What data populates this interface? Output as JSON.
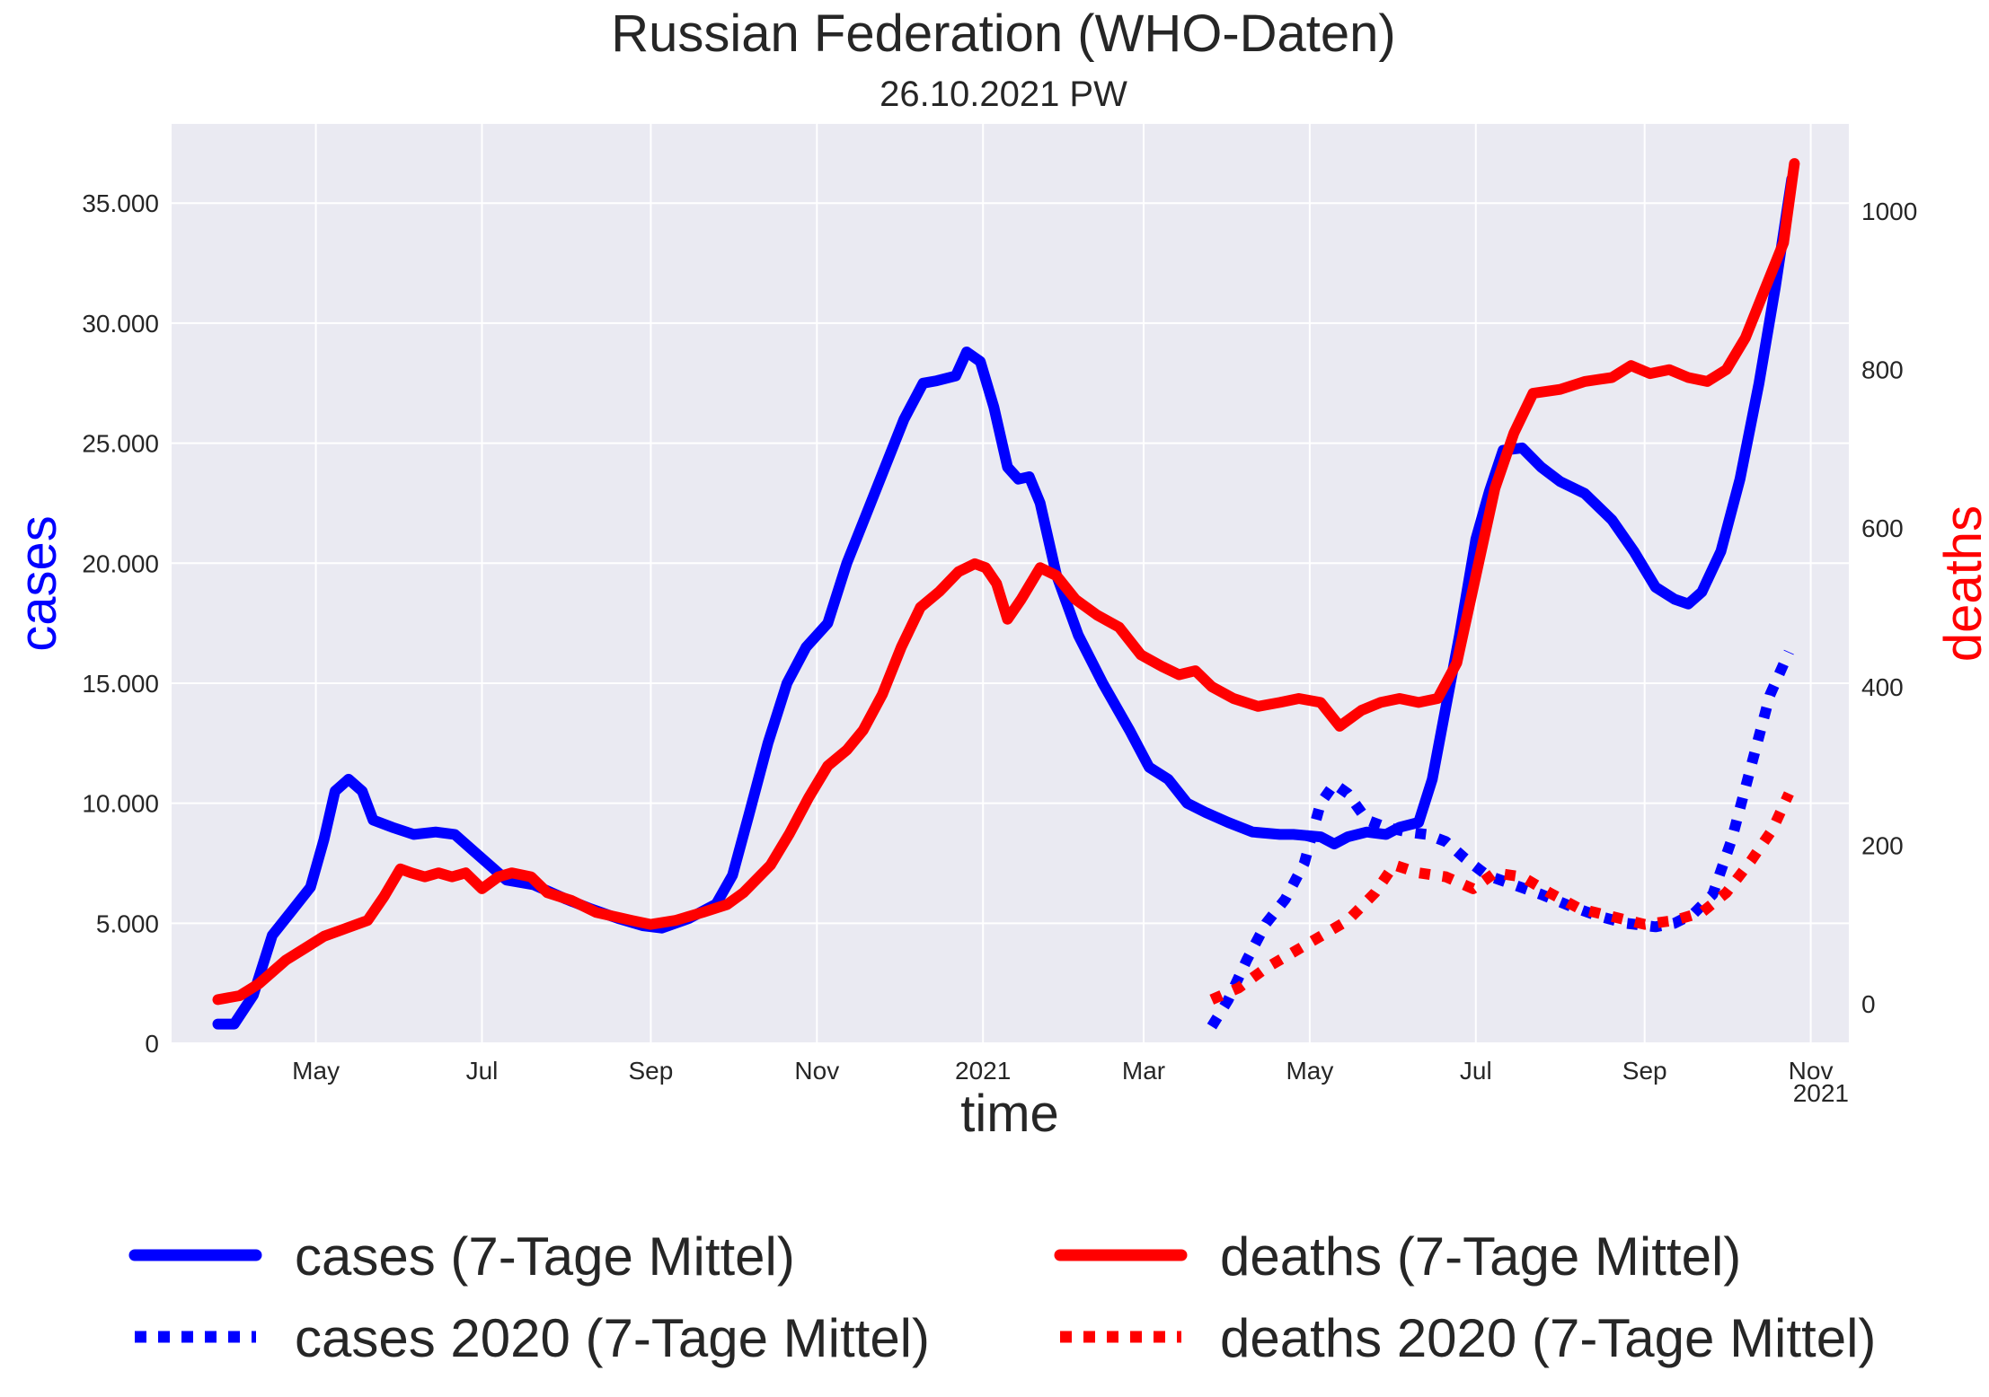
{
  "title": "Russian Federation  (WHO-Daten)",
  "subtitle": "26.10.2021 PW",
  "colors": {
    "cases": "#0000ff",
    "deaths": "#ff0000",
    "plot_background": "#eaeaf2",
    "grid": "#ffffff",
    "text": "#262626"
  },
  "chart_data": {
    "type": "line",
    "title": "Russian Federation  (WHO-Daten)",
    "subtitle": "26.10.2021 PW",
    "xlabel": "time",
    "ylabel_left": "cases",
    "ylabel_right": "deaths",
    "x_axis": {
      "type": "date",
      "range": [
        "2020-03-09",
        "2021-11-15"
      ],
      "offset_label": "2021",
      "ticks": [
        {
          "date": "2020-05-01",
          "label": "May"
        },
        {
          "date": "2020-07-01",
          "label": "Jul"
        },
        {
          "date": "2020-09-01",
          "label": "Sep"
        },
        {
          "date": "2020-11-01",
          "label": "Nov"
        },
        {
          "date": "2021-01-01",
          "label": "2021"
        },
        {
          "date": "2021-03-01",
          "label": "Mar"
        },
        {
          "date": "2021-05-01",
          "label": "May"
        },
        {
          "date": "2021-07-01",
          "label": "Jul"
        },
        {
          "date": "2021-09-01",
          "label": "Sep"
        },
        {
          "date": "2021-11-01",
          "label": "Nov"
        }
      ]
    },
    "y_left": {
      "range": [
        0,
        38300
      ],
      "ticks": [
        {
          "value": 0,
          "label": "0"
        },
        {
          "value": 5000,
          "label": "5.000"
        },
        {
          "value": 10000,
          "label": "10.000"
        },
        {
          "value": 15000,
          "label": "15.000"
        },
        {
          "value": 20000,
          "label": "20.000"
        },
        {
          "value": 25000,
          "label": "25.000"
        },
        {
          "value": 30000,
          "label": "30.000"
        },
        {
          "value": 35000,
          "label": "35.000"
        }
      ]
    },
    "y_right": {
      "range": [
        -50,
        1110
      ],
      "ticks": [
        {
          "value": 0,
          "label": "0"
        },
        {
          "value": 200,
          "label": "200"
        },
        {
          "value": 400,
          "label": "400"
        },
        {
          "value": 600,
          "label": "600"
        },
        {
          "value": 800,
          "label": "800"
        },
        {
          "value": 1000,
          "label": "1000"
        }
      ]
    },
    "grid": true,
    "legend_position": "bottom",
    "series": [
      {
        "name": "cases (7-Tage Mittel)",
        "axis": "left",
        "style": "solid",
        "color": "#0000ff",
        "points": [
          [
            "2020-03-26",
            800
          ],
          [
            "2020-04-01",
            800
          ],
          [
            "2020-04-08",
            2000
          ],
          [
            "2020-04-15",
            4500
          ],
          [
            "2020-04-22",
            5500
          ],
          [
            "2020-04-29",
            6500
          ],
          [
            "2020-05-04",
            8500
          ],
          [
            "2020-05-08",
            10500
          ],
          [
            "2020-05-13",
            11000
          ],
          [
            "2020-05-18",
            10500
          ],
          [
            "2020-05-22",
            9300
          ],
          [
            "2020-05-29",
            9000
          ],
          [
            "2020-06-06",
            8700
          ],
          [
            "2020-06-14",
            8800
          ],
          [
            "2020-06-21",
            8700
          ],
          [
            "2020-06-28",
            8000
          ],
          [
            "2020-07-05",
            7300
          ],
          [
            "2020-07-10",
            6800
          ],
          [
            "2020-07-20",
            6600
          ],
          [
            "2020-08-01",
            6000
          ],
          [
            "2020-08-10",
            5600
          ],
          [
            "2020-08-20",
            5200
          ],
          [
            "2020-08-29",
            4900
          ],
          [
            "2020-09-05",
            4800
          ],
          [
            "2020-09-15",
            5200
          ],
          [
            "2020-09-25",
            5800
          ],
          [
            "2020-10-01",
            7000
          ],
          [
            "2020-10-07",
            9500
          ],
          [
            "2020-10-14",
            12500
          ],
          [
            "2020-10-21",
            15000
          ],
          [
            "2020-10-28",
            16500
          ],
          [
            "2020-11-05",
            17500
          ],
          [
            "2020-11-12",
            20000
          ],
          [
            "2020-11-19",
            22000
          ],
          [
            "2020-11-26",
            24000
          ],
          [
            "2020-12-03",
            26000
          ],
          [
            "2020-12-10",
            27500
          ],
          [
            "2020-12-15",
            27600
          ],
          [
            "2020-12-22",
            27800
          ],
          [
            "2020-12-26",
            28800
          ],
          [
            "2020-12-31",
            28400
          ],
          [
            "2021-01-05",
            26500
          ],
          [
            "2021-01-10",
            24000
          ],
          [
            "2021-01-14",
            23500
          ],
          [
            "2021-01-18",
            23600
          ],
          [
            "2021-01-22",
            22500
          ],
          [
            "2021-01-28",
            19500
          ],
          [
            "2021-02-05",
            17000
          ],
          [
            "2021-02-14",
            15000
          ],
          [
            "2021-02-24",
            13000
          ],
          [
            "2021-03-03",
            11500
          ],
          [
            "2021-03-10",
            11000
          ],
          [
            "2021-03-17",
            10000
          ],
          [
            "2021-03-24",
            9600
          ],
          [
            "2021-04-01",
            9200
          ],
          [
            "2021-04-10",
            8800
          ],
          [
            "2021-04-20",
            8700
          ],
          [
            "2021-04-25",
            8700
          ],
          [
            "2021-05-05",
            8600
          ],
          [
            "2021-05-10",
            8300
          ],
          [
            "2021-05-15",
            8600
          ],
          [
            "2021-05-22",
            8800
          ],
          [
            "2021-05-29",
            8700
          ],
          [
            "2021-06-03",
            9000
          ],
          [
            "2021-06-10",
            9200
          ],
          [
            "2021-06-15",
            11000
          ],
          [
            "2021-06-20",
            14000
          ],
          [
            "2021-06-25",
            17000
          ],
          [
            "2021-07-01",
            21000
          ],
          [
            "2021-07-06",
            23000
          ],
          [
            "2021-07-11",
            24700
          ],
          [
            "2021-07-18",
            24800
          ],
          [
            "2021-07-25",
            24000
          ],
          [
            "2021-08-01",
            23400
          ],
          [
            "2021-08-10",
            22900
          ],
          [
            "2021-08-20",
            21800
          ],
          [
            "2021-08-28",
            20500
          ],
          [
            "2021-09-05",
            19000
          ],
          [
            "2021-09-12",
            18500
          ],
          [
            "2021-09-17",
            18300
          ],
          [
            "2021-09-22",
            18800
          ],
          [
            "2021-09-29",
            20500
          ],
          [
            "2021-10-06",
            23500
          ],
          [
            "2021-10-13",
            27500
          ],
          [
            "2021-10-19",
            31500
          ],
          [
            "2021-10-23",
            34500
          ],
          [
            "2021-10-25",
            36000
          ]
        ]
      },
      {
        "name": "cases 2020 (7-Tage Mittel)",
        "axis": "left",
        "style": "dotted",
        "color": "#0000ff",
        "points": [
          [
            "2021-03-26",
            700
          ],
          [
            "2021-04-01",
            1800
          ],
          [
            "2021-04-08",
            3500
          ],
          [
            "2021-04-15",
            5000
          ],
          [
            "2021-04-22",
            6000
          ],
          [
            "2021-04-29",
            7500
          ],
          [
            "2021-05-05",
            10000
          ],
          [
            "2021-05-10",
            10800
          ],
          [
            "2021-05-15",
            10400
          ],
          [
            "2021-05-22",
            9300
          ],
          [
            "2021-05-29",
            9000
          ],
          [
            "2021-06-06",
            8800
          ],
          [
            "2021-06-13",
            8700
          ],
          [
            "2021-06-20",
            8400
          ],
          [
            "2021-06-27",
            7700
          ],
          [
            "2021-07-05",
            7000
          ],
          [
            "2021-07-15",
            6600
          ],
          [
            "2021-07-25",
            6200
          ],
          [
            "2021-08-05",
            5700
          ],
          [
            "2021-08-15",
            5300
          ],
          [
            "2021-08-25",
            5000
          ],
          [
            "2021-09-05",
            4850
          ],
          [
            "2021-09-12",
            5000
          ],
          [
            "2021-09-19",
            5400
          ],
          [
            "2021-09-26",
            6200
          ],
          [
            "2021-10-03",
            8500
          ],
          [
            "2021-10-10",
            11500
          ],
          [
            "2021-10-17",
            14500
          ],
          [
            "2021-10-24",
            16300
          ]
        ]
      },
      {
        "name": "deaths (7-Tage Mittel)",
        "axis": "right",
        "style": "solid",
        "color": "#ff0000",
        "points": [
          [
            "2020-03-26",
            5
          ],
          [
            "2020-04-03",
            10
          ],
          [
            "2020-04-10",
            25
          ],
          [
            "2020-04-20",
            55
          ],
          [
            "2020-04-27",
            70
          ],
          [
            "2020-05-04",
            85
          ],
          [
            "2020-05-12",
            95
          ],
          [
            "2020-05-20",
            105
          ],
          [
            "2020-05-26",
            135
          ],
          [
            "2020-06-01",
            170
          ],
          [
            "2020-06-05",
            165
          ],
          [
            "2020-06-10",
            160
          ],
          [
            "2020-06-15",
            165
          ],
          [
            "2020-06-20",
            160
          ],
          [
            "2020-06-25",
            165
          ],
          [
            "2020-07-01",
            145
          ],
          [
            "2020-07-07",
            160
          ],
          [
            "2020-07-12",
            165
          ],
          [
            "2020-07-19",
            160
          ],
          [
            "2020-07-25",
            140
          ],
          [
            "2020-08-03",
            130
          ],
          [
            "2020-08-12",
            115
          ],
          [
            "2020-08-25",
            105
          ],
          [
            "2020-09-01",
            100
          ],
          [
            "2020-09-10",
            105
          ],
          [
            "2020-09-20",
            115
          ],
          [
            "2020-09-29",
            125
          ],
          [
            "2020-10-05",
            140
          ],
          [
            "2020-10-15",
            175
          ],
          [
            "2020-10-22",
            215
          ],
          [
            "2020-10-29",
            260
          ],
          [
            "2020-11-05",
            300
          ],
          [
            "2020-11-12",
            320
          ],
          [
            "2020-11-18",
            345
          ],
          [
            "2020-11-25",
            390
          ],
          [
            "2020-12-02",
            450
          ],
          [
            "2020-12-09",
            500
          ],
          [
            "2020-12-16",
            520
          ],
          [
            "2020-12-23",
            545
          ],
          [
            "2020-12-29",
            555
          ],
          [
            "2021-01-02",
            550
          ],
          [
            "2021-01-06",
            530
          ],
          [
            "2021-01-10",
            485
          ],
          [
            "2021-01-15",
            510
          ],
          [
            "2021-01-22",
            550
          ],
          [
            "2021-01-28",
            540
          ],
          [
            "2021-02-04",
            510
          ],
          [
            "2021-02-12",
            490
          ],
          [
            "2021-02-20",
            475
          ],
          [
            "2021-02-28",
            440
          ],
          [
            "2021-03-08",
            425
          ],
          [
            "2021-03-14",
            415
          ],
          [
            "2021-03-20",
            420
          ],
          [
            "2021-03-26",
            400
          ],
          [
            "2021-04-03",
            385
          ],
          [
            "2021-04-12",
            375
          ],
          [
            "2021-04-20",
            380
          ],
          [
            "2021-04-27",
            385
          ],
          [
            "2021-05-05",
            380
          ],
          [
            "2021-05-12",
            350
          ],
          [
            "2021-05-20",
            370
          ],
          [
            "2021-05-27",
            380
          ],
          [
            "2021-06-03",
            385
          ],
          [
            "2021-06-10",
            380
          ],
          [
            "2021-06-17",
            385
          ],
          [
            "2021-06-24",
            430
          ],
          [
            "2021-07-01",
            540
          ],
          [
            "2021-07-08",
            650
          ],
          [
            "2021-07-15",
            720
          ],
          [
            "2021-07-22",
            770
          ],
          [
            "2021-08-01",
            775
          ],
          [
            "2021-08-10",
            785
          ],
          [
            "2021-08-20",
            790
          ],
          [
            "2021-08-27",
            805
          ],
          [
            "2021-09-03",
            795
          ],
          [
            "2021-09-10",
            800
          ],
          [
            "2021-09-17",
            790
          ],
          [
            "2021-09-24",
            785
          ],
          [
            "2021-10-01",
            800
          ],
          [
            "2021-10-08",
            840
          ],
          [
            "2021-10-15",
            900
          ],
          [
            "2021-10-22",
            960
          ],
          [
            "2021-10-26",
            1060
          ]
        ]
      },
      {
        "name": "deaths 2020 (7-Tage Mittel)",
        "axis": "right",
        "style": "dotted",
        "color": "#ff0000",
        "points": [
          [
            "2021-03-26",
            5
          ],
          [
            "2021-04-05",
            20
          ],
          [
            "2021-04-15",
            45
          ],
          [
            "2021-04-25",
            65
          ],
          [
            "2021-05-05",
            85
          ],
          [
            "2021-05-15",
            105
          ],
          [
            "2021-05-25",
            140
          ],
          [
            "2021-06-01",
            175
          ],
          [
            "2021-06-10",
            165
          ],
          [
            "2021-06-20",
            160
          ],
          [
            "2021-06-30",
            145
          ],
          [
            "2021-07-08",
            165
          ],
          [
            "2021-07-18",
            160
          ],
          [
            "2021-07-28",
            140
          ],
          [
            "2021-08-08",
            120
          ],
          [
            "2021-08-20",
            110
          ],
          [
            "2021-09-01",
            100
          ],
          [
            "2021-09-12",
            105
          ],
          [
            "2021-09-22",
            115
          ],
          [
            "2021-10-01",
            140
          ],
          [
            "2021-10-10",
            180
          ],
          [
            "2021-10-18",
            220
          ],
          [
            "2021-10-24",
            265
          ]
        ]
      }
    ]
  }
}
